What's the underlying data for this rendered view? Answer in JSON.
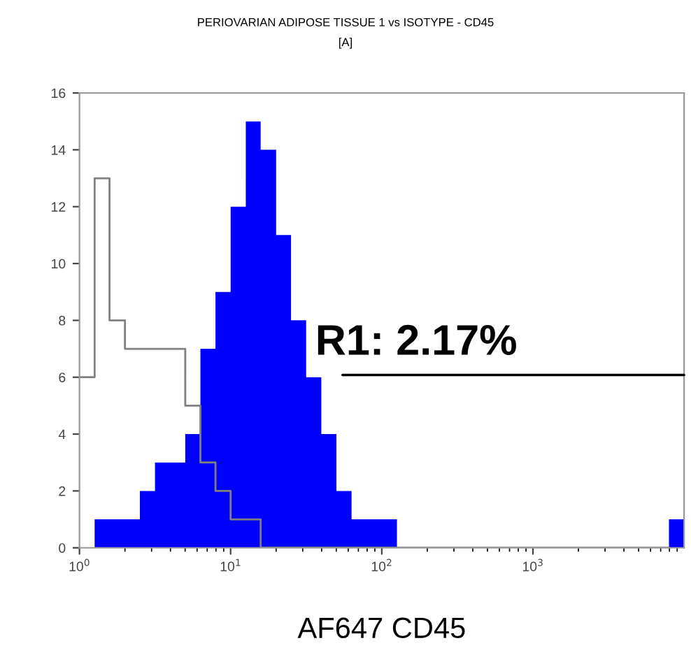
{
  "chart_data": {
    "type": "histogram",
    "title": "PERIOVARIAN ADIPOSE TISSUE 1 vs ISOTYPE - CD45",
    "subtitle": "[A]",
    "xlabel": "AF647 CD45",
    "bins": [
      1,
      1.26,
      1.58,
      2,
      2.51,
      3.16,
      3.98,
      5.01,
      6.31,
      7.94,
      10,
      12.6,
      15.8,
      20,
      25.1,
      31.6,
      39.8,
      50.1,
      63.1,
      79.4,
      100,
      126,
      158,
      200,
      251,
      316,
      398,
      501,
      631,
      794,
      1000,
      1260,
      1580,
      2000,
      2510,
      3160,
      3980,
      5010,
      6310,
      7940,
      10000
    ],
    "series": [
      {
        "type": "histogram",
        "color": "#0000ff",
        "values": [
          0,
          1,
          1,
          1,
          2,
          3,
          3,
          4,
          7,
          9,
          12,
          15,
          14,
          11,
          8,
          6,
          4,
          2,
          1,
          1,
          1,
          0,
          0,
          0,
          0,
          0,
          0,
          0,
          0,
          0,
          0,
          0,
          0,
          0,
          0,
          0,
          0,
          0,
          0,
          1
        ]
      },
      {
        "type": "step",
        "color": "#808080",
        "x": [
          1,
          1.26,
          1.58,
          2,
          2.51,
          3.16,
          3.98,
          5.01,
          6.31,
          7.94,
          10,
          12.6,
          15.8,
          20,
          25.1,
          31.6,
          39.8,
          50.1,
          63.1,
          79.4,
          100,
          126,
          158,
          200,
          251,
          316,
          398,
          501,
          631,
          794,
          1000,
          1260,
          1580,
          2000,
          2510,
          3160,
          3980,
          5010,
          6310,
          7940
        ],
        "values": [
          6,
          13,
          8,
          7,
          7,
          7,
          7,
          5,
          3,
          2,
          1,
          1,
          0,
          0,
          0,
          0,
          0,
          0,
          0,
          0,
          0,
          0,
          0,
          0,
          0,
          0,
          0,
          0,
          0,
          0,
          0,
          0,
          0,
          0,
          0,
          0,
          0,
          0,
          0,
          0
        ]
      }
    ],
    "log": "x",
    "xlim": [
      1,
      10000
    ],
    "xticks": [
      {
        "value": 1,
        "label": "10$^{0}$"
      },
      {
        "value": 10,
        "label": "10$^{1}$"
      },
      {
        "value": 100,
        "label": "10$^{2}$"
      },
      {
        "value": 1000,
        "label": "10$^{3}$"
      }
    ],
    "ylim": [
      0,
      16
    ],
    "yticks": [
      0,
      2,
      4,
      6,
      8,
      10,
      12,
      14,
      16
    ],
    "grid": false,
    "annotations": [
      "R1: 2.17%"
    ]
  }
}
